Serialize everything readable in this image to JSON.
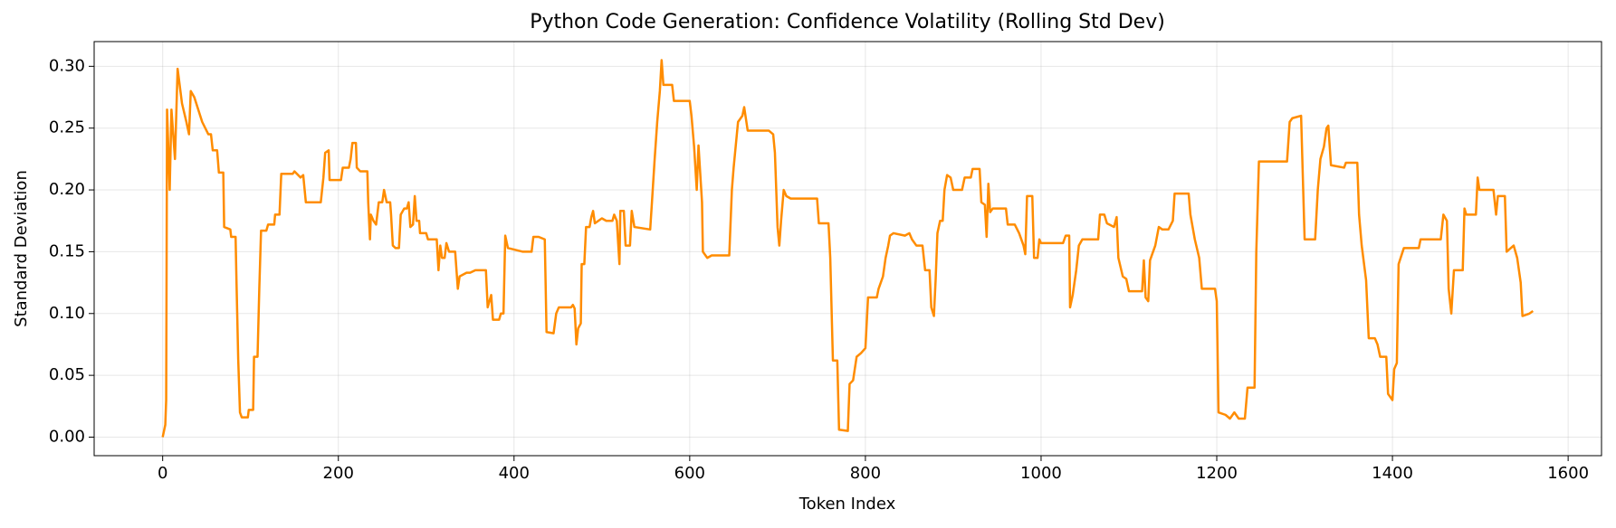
{
  "chart_data": {
    "type": "line",
    "title": "Python Code Generation: Confidence Volatility (Rolling Std Dev)",
    "x_label": "Token Index",
    "y_label": "Standard Deviation",
    "xlim": [
      -78,
      1638
    ],
    "ylim": [
      -0.015,
      0.32
    ],
    "xticks": [
      0,
      200,
      400,
      600,
      800,
      1000,
      1200,
      1400,
      1600
    ],
    "yticks": [
      {
        "value": 0,
        "label": "0.00"
      },
      {
        "value": 0.05,
        "label": "0.05"
      },
      {
        "value": 0.1,
        "label": "0.10"
      },
      {
        "value": 0.15,
        "label": "0.15"
      },
      {
        "value": 0.2,
        "label": "0.20"
      },
      {
        "value": 0.25,
        "label": "0.25"
      },
      {
        "value": 0.3,
        "label": "0.30"
      }
    ],
    "grid": true,
    "x": [
      0,
      3,
      4,
      5,
      8,
      10,
      14,
      17,
      22,
      27,
      30,
      32,
      36,
      45,
      52,
      55,
      57,
      62,
      64,
      69,
      70,
      77,
      78,
      83,
      84,
      86,
      88,
      90,
      97,
      98,
      103,
      104,
      108,
      110,
      112,
      118,
      120,
      127,
      128,
      133,
      135,
      148,
      150,
      157,
      160,
      163,
      170,
      180,
      183,
      185,
      189,
      190,
      203,
      205,
      212,
      214,
      216,
      220,
      221,
      225,
      233,
      234,
      236,
      237,
      240,
      243,
      246,
      250,
      252,
      255,
      259,
      260,
      262,
      265,
      269,
      271,
      275,
      278,
      280,
      282,
      285,
      287,
      289,
      292,
      293,
      300,
      302,
      312,
      314,
      316,
      318,
      321,
      323,
      326,
      333,
      336,
      338,
      346,
      350,
      356,
      368,
      370,
      372,
      374,
      376,
      383,
      385,
      388,
      390,
      393,
      410,
      420,
      422,
      428,
      435,
      437,
      445,
      448,
      451,
      465,
      467,
      469,
      471,
      473,
      476,
      477,
      480,
      482,
      486,
      488,
      490,
      492,
      500,
      505,
      512,
      514,
      517,
      520,
      521,
      525,
      527,
      532,
      534,
      537,
      555,
      557,
      560,
      563,
      566,
      568,
      570,
      580,
      582,
      600,
      602,
      605,
      608,
      610,
      614,
      615,
      620,
      625,
      645,
      648,
      650,
      655,
      660,
      662,
      666,
      690,
      695,
      697,
      700,
      702,
      704,
      707,
      710,
      715,
      745,
      747,
      758,
      760,
      763,
      768,
      770,
      780,
      782,
      786,
      790,
      795,
      800,
      803,
      813,
      815,
      820,
      823,
      826,
      828,
      832,
      845,
      850,
      853,
      858,
      865,
      868,
      873,
      875,
      878,
      880,
      882,
      885,
      888,
      890,
      893,
      897,
      900,
      910,
      913,
      920,
      922,
      930,
      932,
      936,
      938,
      940,
      942,
      945,
      960,
      962,
      970,
      975,
      980,
      982,
      984,
      990,
      992,
      996,
      998,
      1000,
      1025,
      1028,
      1032,
      1033,
      1036,
      1040,
      1043,
      1047,
      1065,
      1067,
      1072,
      1075,
      1083,
      1086,
      1088,
      1093,
      1097,
      1100,
      1115,
      1117,
      1119,
      1122,
      1124,
      1130,
      1134,
      1138,
      1145,
      1150,
      1152,
      1168,
      1170,
      1175,
      1180,
      1183,
      1198,
      1200,
      1202,
      1210,
      1215,
      1220,
      1225,
      1232,
      1235,
      1243,
      1245,
      1248,
      1280,
      1283,
      1286,
      1296,
      1300,
      1312,
      1315,
      1318,
      1322,
      1325,
      1327,
      1330,
      1345,
      1347,
      1360,
      1362,
      1365,
      1370,
      1373,
      1380,
      1383,
      1386,
      1393,
      1395,
      1400,
      1402,
      1405,
      1407,
      1413,
      1430,
      1432,
      1455,
      1458,
      1462,
      1464,
      1467,
      1470,
      1480,
      1482,
      1484,
      1495,
      1497,
      1499,
      1515,
      1518,
      1520,
      1528,
      1530,
      1538,
      1542,
      1546,
      1548,
      1556,
      1560
    ],
    "series": [
      {
        "color": "#ff8c00",
        "values": [
          0,
          0.01,
          0.03,
          0.265,
          0.2,
          0.265,
          0.225,
          0.298,
          0.27,
          0.255,
          0.245,
          0.28,
          0.275,
          0.255,
          0.245,
          0.245,
          0.232,
          0.232,
          0.214,
          0.214,
          0.17,
          0.168,
          0.162,
          0.162,
          0.127,
          0.063,
          0.02,
          0.016,
          0.016,
          0.022,
          0.022,
          0.065,
          0.065,
          0.12,
          0.167,
          0.167,
          0.172,
          0.172,
          0.18,
          0.18,
          0.213,
          0.213,
          0.215,
          0.21,
          0.212,
          0.19,
          0.19,
          0.19,
          0.21,
          0.23,
          0.232,
          0.208,
          0.208,
          0.218,
          0.218,
          0.225,
          0.238,
          0.238,
          0.218,
          0.215,
          0.215,
          0.19,
          0.16,
          0.18,
          0.175,
          0.172,
          0.19,
          0.19,
          0.2,
          0.19,
          0.19,
          0.18,
          0.155,
          0.153,
          0.153,
          0.18,
          0.185,
          0.185,
          0.19,
          0.17,
          0.172,
          0.195,
          0.175,
          0.175,
          0.165,
          0.165,
          0.16,
          0.16,
          0.135,
          0.155,
          0.145,
          0.145,
          0.157,
          0.15,
          0.15,
          0.12,
          0.13,
          0.133,
          0.133,
          0.135,
          0.135,
          0.105,
          0.11,
          0.115,
          0.095,
          0.095,
          0.1,
          0.1,
          0.163,
          0.153,
          0.15,
          0.15,
          0.162,
          0.162,
          0.16,
          0.085,
          0.084,
          0.1,
          0.105,
          0.105,
          0.107,
          0.104,
          0.075,
          0.088,
          0.092,
          0.14,
          0.14,
          0.17,
          0.17,
          0.178,
          0.183,
          0.173,
          0.177,
          0.175,
          0.175,
          0.18,
          0.175,
          0.14,
          0.183,
          0.183,
          0.155,
          0.155,
          0.183,
          0.17,
          0.168,
          0.19,
          0.224,
          0.255,
          0.28,
          0.305,
          0.285,
          0.285,
          0.272,
          0.272,
          0.26,
          0.235,
          0.2,
          0.236,
          0.19,
          0.15,
          0.145,
          0.147,
          0.147,
          0.2,
          0.218,
          0.255,
          0.26,
          0.267,
          0.248,
          0.248,
          0.245,
          0.23,
          0.17,
          0.155,
          0.175,
          0.2,
          0.195,
          0.193,
          0.193,
          0.173,
          0.173,
          0.145,
          0.062,
          0.062,
          0.006,
          0.005,
          0.043,
          0.046,
          0.065,
          0.068,
          0.072,
          0.113,
          0.113,
          0.12,
          0.13,
          0.145,
          0.155,
          0.163,
          0.165,
          0.163,
          0.165,
          0.16,
          0.155,
          0.155,
          0.135,
          0.135,
          0.105,
          0.098,
          0.128,
          0.165,
          0.175,
          0.175,
          0.2,
          0.212,
          0.21,
          0.2,
          0.2,
          0.21,
          0.21,
          0.217,
          0.217,
          0.19,
          0.188,
          0.162,
          0.205,
          0.182,
          0.185,
          0.185,
          0.172,
          0.172,
          0.165,
          0.155,
          0.148,
          0.195,
          0.195,
          0.145,
          0.145,
          0.16,
          0.157,
          0.157,
          0.163,
          0.163,
          0.105,
          0.115,
          0.135,
          0.155,
          0.16,
          0.16,
          0.18,
          0.18,
          0.173,
          0.17,
          0.178,
          0.145,
          0.13,
          0.128,
          0.118,
          0.118,
          0.143,
          0.113,
          0.11,
          0.143,
          0.155,
          0.17,
          0.168,
          0.168,
          0.175,
          0.197,
          0.197,
          0.18,
          0.16,
          0.145,
          0.12,
          0.12,
          0.11,
          0.02,
          0.018,
          0.015,
          0.02,
          0.015,
          0.015,
          0.04,
          0.04,
          0.15,
          0.223,
          0.223,
          0.255,
          0.258,
          0.26,
          0.16,
          0.16,
          0.2,
          0.225,
          0.235,
          0.25,
          0.252,
          0.22,
          0.218,
          0.222,
          0.222,
          0.18,
          0.155,
          0.127,
          0.08,
          0.08,
          0.075,
          0.065,
          0.065,
          0.035,
          0.03,
          0.055,
          0.06,
          0.14,
          0.153,
          0.153,
          0.16,
          0.16,
          0.18,
          0.175,
          0.12,
          0.1,
          0.135,
          0.135,
          0.185,
          0.18,
          0.18,
          0.21,
          0.2,
          0.2,
          0.18,
          0.195,
          0.195,
          0.15,
          0.155,
          0.145,
          0.125,
          0.098,
          0.1,
          0.102
        ]
      }
    ]
  }
}
